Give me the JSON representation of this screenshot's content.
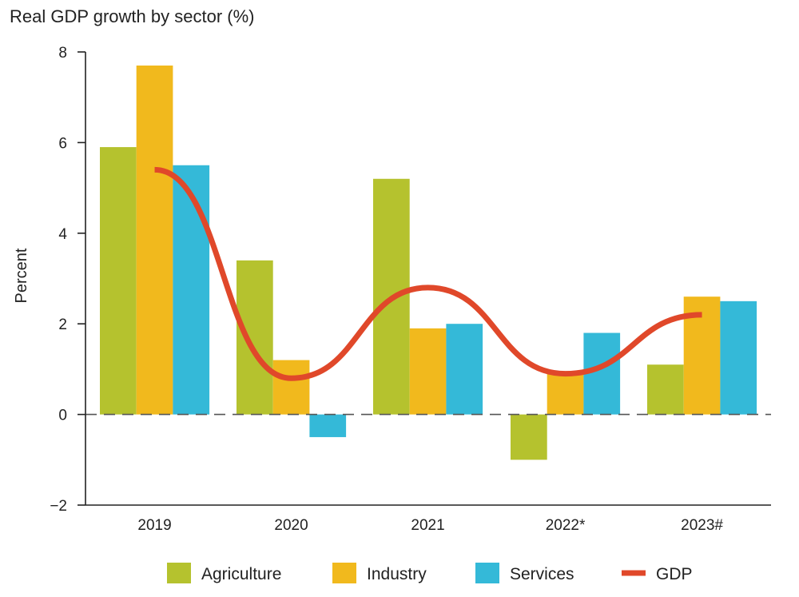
{
  "chart_data": {
    "type": "bar",
    "title": "Real GDP growth by sector (%)",
    "ylabel": "Percent",
    "xlabel": "",
    "categories": [
      "2019",
      "2020",
      "2021",
      "2022*",
      "2023#"
    ],
    "ylim": [
      -2,
      8
    ],
    "yticks": [
      {
        "value": -2,
        "label": "−2"
      },
      {
        "value": 0,
        "label": "0"
      },
      {
        "value": 2,
        "label": "2"
      },
      {
        "value": 4,
        "label": "4"
      },
      {
        "value": 6,
        "label": "6"
      },
      {
        "value": 8,
        "label": "8"
      }
    ],
    "series": [
      {
        "name": "Agriculture",
        "type": "bar",
        "color": "#b5c22e",
        "values": [
          5.9,
          3.4,
          5.2,
          -1.0,
          1.1
        ]
      },
      {
        "name": "Industry",
        "type": "bar",
        "color": "#f1b91d",
        "values": [
          7.7,
          1.2,
          1.9,
          0.9,
          2.6
        ]
      },
      {
        "name": "Services",
        "type": "bar",
        "color": "#34b9d8",
        "values": [
          5.5,
          -0.5,
          2.0,
          1.8,
          2.5
        ]
      },
      {
        "name": "GDP",
        "type": "line",
        "color": "#e0482a",
        "values": [
          5.4,
          0.8,
          2.8,
          0.9,
          2.2
        ]
      }
    ],
    "zero_line": "dashed",
    "grid": false,
    "legend": "bottom"
  }
}
